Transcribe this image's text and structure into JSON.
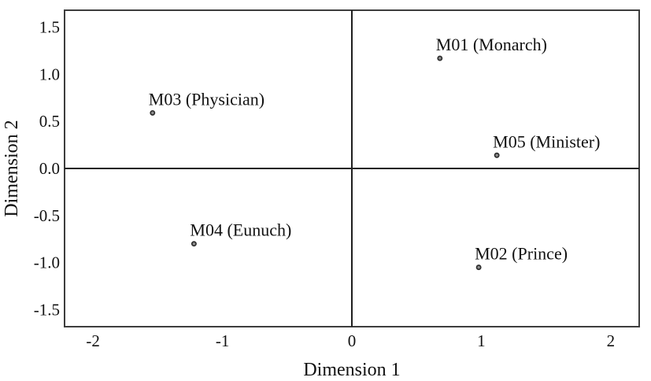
{
  "figure": {
    "background": "#ffffff",
    "text_color": "#111111",
    "frame_color": "#3d3d3d",
    "reference_line_color": "#1f1f1f",
    "point_fill": "#8e8e8e",
    "point_stroke": "#2d2d2d"
  },
  "chart_data": {
    "type": "scatter",
    "title": "",
    "xlabel": "Dimension 1",
    "ylabel": "Dimension 2",
    "xlim": [
      -2.22,
      2.22
    ],
    "ylim": [
      -1.68,
      1.68
    ],
    "grid": false,
    "legend": null,
    "reference_lines": {
      "x": 0,
      "y": 0
    },
    "x_ticks": [
      {
        "value": -2,
        "label": "-2"
      },
      {
        "value": -1,
        "label": "-1"
      },
      {
        "value": 0,
        "label": "0"
      },
      {
        "value": 1,
        "label": "1"
      },
      {
        "value": 2,
        "label": "2"
      }
    ],
    "y_ticks": [
      {
        "value": 1.5,
        "label": "1.5"
      },
      {
        "value": 1.0,
        "label": "1.0"
      },
      {
        "value": 0.5,
        "label": "0.5"
      },
      {
        "value": 0.0,
        "label": "0.0"
      },
      {
        "value": -0.5,
        "label": "-0.5"
      },
      {
        "value": -1.0,
        "label": "-1.0"
      },
      {
        "value": -1.5,
        "label": "-1.5"
      }
    ],
    "points": [
      {
        "id": "M01",
        "label": "M01 (Monarch)",
        "x": 0.68,
        "y": 1.17
      },
      {
        "id": "M02",
        "label": "M02 (Prince)",
        "x": 0.98,
        "y": -1.05
      },
      {
        "id": "M03",
        "label": "M03 (Physician)",
        "x": -1.54,
        "y": 0.59
      },
      {
        "id": "M04",
        "label": "M04 (Eunuch)",
        "x": -1.22,
        "y": -0.8
      },
      {
        "id": "M05",
        "label": "M05 (Minister)",
        "x": 1.12,
        "y": 0.14
      }
    ]
  }
}
